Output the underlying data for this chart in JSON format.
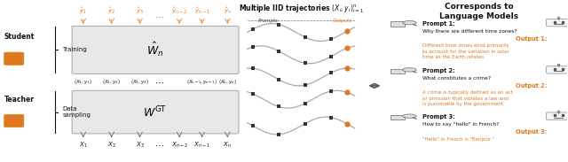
{
  "figsize": [
    6.4,
    1.83
  ],
  "dpi": 100,
  "bg_color": "#ffffff",
  "title_right": "Corresponds to\nLanguage Models",
  "left_box1_label": "$\\hat{W}_n$",
  "left_box2_label": "$W^{\\mathrm{GT}}$",
  "student_label": "Student",
  "teacher_label": "Teacher",
  "training_label": "Training",
  "data_sampling_label": "Data\nsampling",
  "hat_y_labels": [
    "$\\hat{y}_1$",
    "$\\hat{y}_2$",
    "$\\hat{y}_3$",
    "$\\hat{y}_{n-2}$",
    "$\\hat{y}_{n-1}$",
    "$\\hat{y}_n$"
  ],
  "pair_labels": [
    "$(X_1,y_1)$",
    "$(X_2,y_2)$",
    "$(X_3,y_3)$",
    "$(X_{n-1},y_{n-1})$",
    "$(X_n,y_n)$"
  ],
  "x_labels_bottom": [
    "$X_1$",
    "$X_2$",
    "$X_3$",
    "$X_{n-2}$",
    "$X_{n-1}$",
    "$X_n$"
  ],
  "middle_title": "Multiple IID trajectories $(X_i, y_i)_{i=1}^n$",
  "prompts_label": "Prompts",
  "outputs_label": "Outputs",
  "prompt1_title": "Prompt 1:",
  "prompt1_q": "Why there are different time zones?",
  "prompt1_out_label": "Output 1:",
  "prompt1_out": "Different time zones exist primarily\nto account for the variation in solar\ntime as the Earth rotates.",
  "prompt2_title": "Prompt 2:",
  "prompt2_q": "What constitutes a crime?",
  "prompt2_out_label": "Output 2:",
  "prompt2_out": "A crime is typically defined as an act\nor omission that violates a law and\nis punishable by the government.",
  "prompt3_title": "Prompt 3:",
  "prompt3_q": "How to say \"hello\" in French?",
  "prompt3_out_label": "Output 3:",
  "prompt3_out": "\"Hello\" in French is \"Bonjour.\"",
  "orange": "#E07820",
  "dark": "#111111",
  "gray_box": "#e8e8e8",
  "gray_line": "#aaaaaa"
}
